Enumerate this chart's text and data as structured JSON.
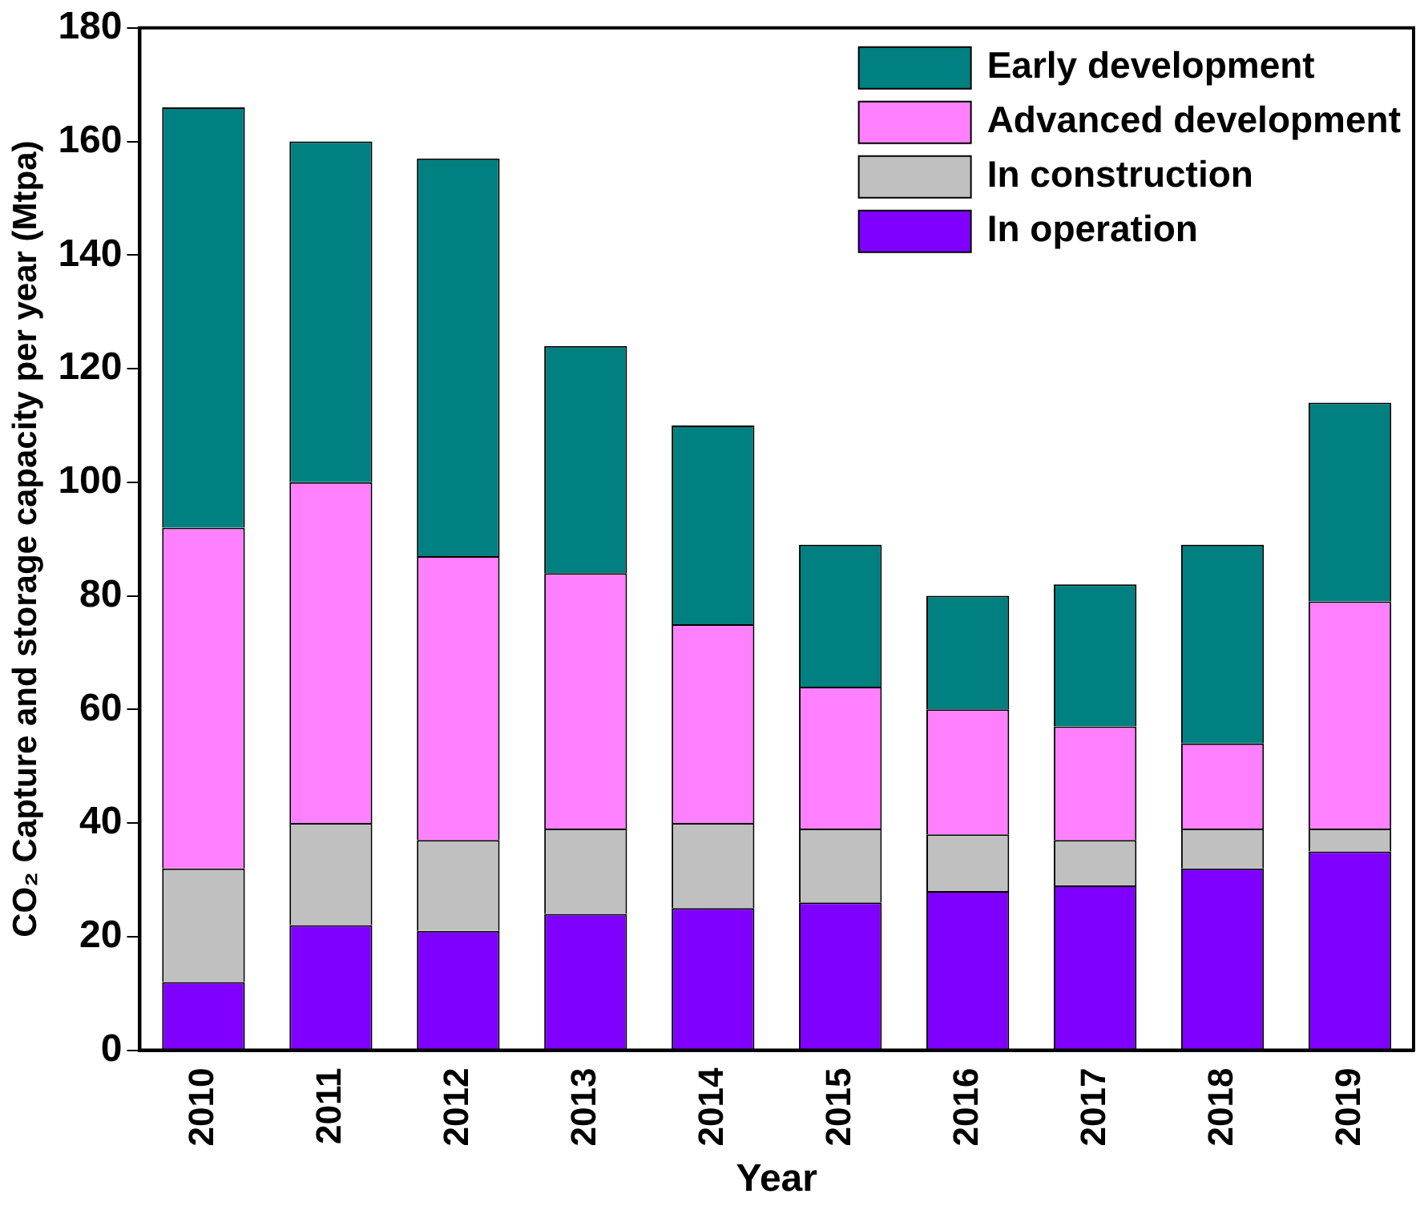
{
  "chart_data": {
    "type": "bar",
    "stacked": true,
    "xlabel": "Year",
    "ylabel": "CO₂ Capture and storage capacity per year (Mtpa)",
    "categories": [
      "2010",
      "2011",
      "2012",
      "2013",
      "2014",
      "2015",
      "2016",
      "2017",
      "2018",
      "2019"
    ],
    "series": [
      {
        "name": "In operation",
        "color": "#8000ff",
        "values": [
          12,
          22,
          21,
          24,
          25,
          26,
          28,
          29,
          32,
          35
        ]
      },
      {
        "name": "In construction",
        "color": "#c0c0c0",
        "values": [
          20,
          18,
          16,
          15,
          15,
          13,
          10,
          8,
          7,
          4
        ]
      },
      {
        "name": "Advanced development",
        "color": "#ff80ff",
        "values": [
          60,
          60,
          50,
          45,
          35,
          25,
          22,
          20,
          15,
          40
        ]
      },
      {
        "name": "Early development",
        "color": "#008080",
        "values": [
          74,
          60,
          70,
          40,
          35,
          25,
          20,
          25,
          35,
          35
        ]
      }
    ],
    "ylim": [
      0,
      180
    ],
    "yticks": [
      0,
      20,
      40,
      60,
      80,
      100,
      120,
      140,
      160,
      180
    ],
    "grid": false,
    "legend": "top right"
  }
}
